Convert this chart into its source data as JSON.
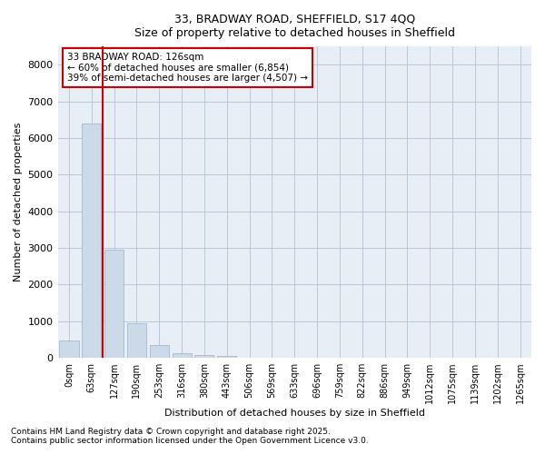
{
  "title_line1": "33, BRADWAY ROAD, SHEFFIELD, S17 4QQ",
  "title_line2": "Size of property relative to detached houses in Sheffield",
  "xlabel": "Distribution of detached houses by size in Sheffield",
  "ylabel": "Number of detached properties",
  "bar_color": "#ccd9e8",
  "bar_edge_color": "#9ab0c8",
  "grid_color": "#b8c8d8",
  "annotation_box_color": "#cc0000",
  "vline_color": "#cc0000",
  "background_color": "#e8eef5",
  "categories": [
    "0sqm",
    "63sqm",
    "127sqm",
    "190sqm",
    "253sqm",
    "316sqm",
    "380sqm",
    "443sqm",
    "506sqm",
    "569sqm",
    "633sqm",
    "696sqm",
    "759sqm",
    "822sqm",
    "886sqm",
    "949sqm",
    "1012sqm",
    "1075sqm",
    "1139sqm",
    "1202sqm",
    "1265sqm"
  ],
  "values": [
    480,
    6400,
    2950,
    950,
    350,
    130,
    80,
    50,
    0,
    0,
    0,
    0,
    0,
    0,
    0,
    0,
    0,
    0,
    0,
    0,
    0
  ],
  "property_label": "33 BRADWAY ROAD: 126sqm",
  "pct_smaller": "60% of detached houses are smaller (6,854)",
  "pct_larger": "39% of semi-detached houses are larger (4,507)",
  "vline_bin_index": 1.5,
  "ylim": [
    0,
    8500
  ],
  "yticks": [
    0,
    1000,
    2000,
    3000,
    4000,
    5000,
    6000,
    7000,
    8000
  ],
  "footnote1": "Contains HM Land Registry data © Crown copyright and database right 2025.",
  "footnote2": "Contains public sector information licensed under the Open Government Licence v3.0."
}
